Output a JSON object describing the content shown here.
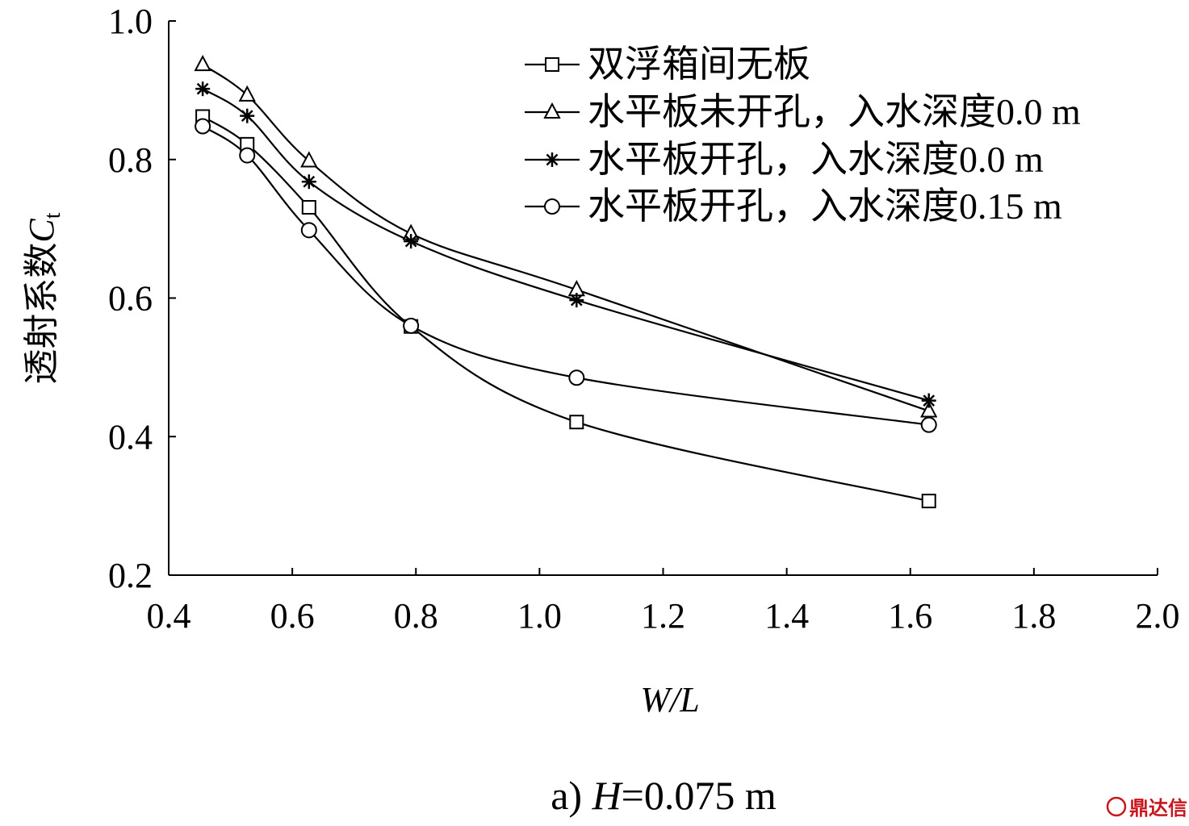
{
  "chart_data": {
    "type": "line",
    "xlabel": "W/L",
    "ylabel_text": "透射系数",
    "ylabel_symbol": "C",
    "ylabel_subscript": "t",
    "xlim": [
      0.4,
      2.0
    ],
    "ylim": [
      0.2,
      1.0
    ],
    "xticks": [
      "0.4",
      "0.6",
      "0.8",
      "1.0",
      "1.2",
      "1.4",
      "1.6",
      "1.8",
      "2.0"
    ],
    "yticks": [
      "0.2",
      "0.4",
      "0.6",
      "0.8",
      "1.0"
    ],
    "x": [
      0.455,
      0.527,
      0.627,
      0.792,
      1.06,
      1.63
    ],
    "series": [
      {
        "name": "双浮箱间无板",
        "marker": "square",
        "values": [
          0.862,
          0.822,
          0.731,
          0.559,
          0.421,
          0.307
        ]
      },
      {
        "name": "水平板未开孔，入水深度0.0 m",
        "marker": "triangle",
        "values": [
          0.937,
          0.893,
          0.798,
          0.693,
          0.612,
          0.437
        ]
      },
      {
        "name": "水平板开孔，入水深度0.0 m",
        "marker": "star",
        "values": [
          0.902,
          0.863,
          0.768,
          0.682,
          0.597,
          0.452
        ]
      },
      {
        "name": "水平板开孔，入水深度0.15 m",
        "marker": "circle",
        "values": [
          0.848,
          0.806,
          0.698,
          0.56,
          0.485,
          0.417
        ]
      }
    ],
    "legend_position": "top-right",
    "grid": false
  },
  "caption": {
    "prefix": "a) ",
    "symbol": "H",
    "rest": "=0.075 m"
  },
  "watermark": {
    "text": "鼎达信",
    "color": "#c8161d"
  }
}
